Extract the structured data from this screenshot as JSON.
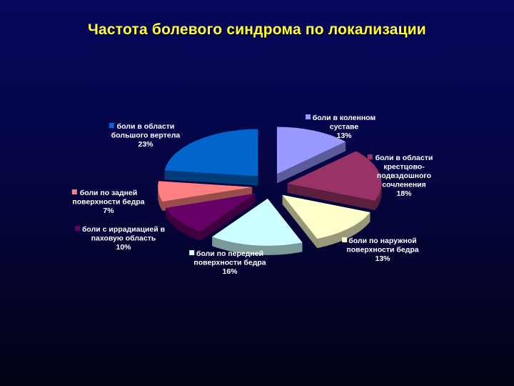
{
  "title": "Частота болевого синдрома по локализации",
  "chart_data": {
    "type": "pie",
    "title": "Частота болевого синдрома по локализации",
    "style": "3d-exploded",
    "slices": [
      {
        "name": "боли в коленном суставе",
        "value": 13,
        "label_lines": [
          "боли в коленном",
          "суставе",
          "13%"
        ],
        "color": "#9999ff",
        "side": "#5b5b99"
      },
      {
        "name": "боли в области крестцово-подвздошного сочленения",
        "value": 18,
        "label_lines": [
          "боли в области",
          "крестцово-",
          "подвздошного",
          "сочленения",
          "18%"
        ],
        "color": "#993366",
        "side": "#5c1f3d"
      },
      {
        "name": "боли по наружной поверхности бедра",
        "value": 13,
        "label_lines": [
          "боли по наружной",
          "поверхности бедра",
          "13%"
        ],
        "color": "#ffffcc",
        "side": "#99997a"
      },
      {
        "name": "боли по передней поверхности бедра",
        "value": 16,
        "label_lines": [
          "боли по передней",
          "поверхности бедра",
          "16%"
        ],
        "color": "#ccffff",
        "side": "#7a9999"
      },
      {
        "name": "боли с иррадиацией в паховую область",
        "value": 10,
        "label_lines": [
          "боли с иррадиацией в",
          "паховую область",
          "10%"
        ],
        "color": "#660066",
        "side": "#3d003d"
      },
      {
        "name": "боли по задней поверхности бедра",
        "value": 7,
        "label_lines": [
          "боли по задней",
          "поверхности бедра",
          "7%"
        ],
        "color": "#ff8080",
        "side": "#994d4d"
      },
      {
        "name": "боли в области большого вертела",
        "value": 23,
        "label_lines": [
          "боли в области",
          "большого вертела",
          "23%"
        ],
        "color": "#0066cc",
        "side": "#003d7a"
      }
    ]
  }
}
